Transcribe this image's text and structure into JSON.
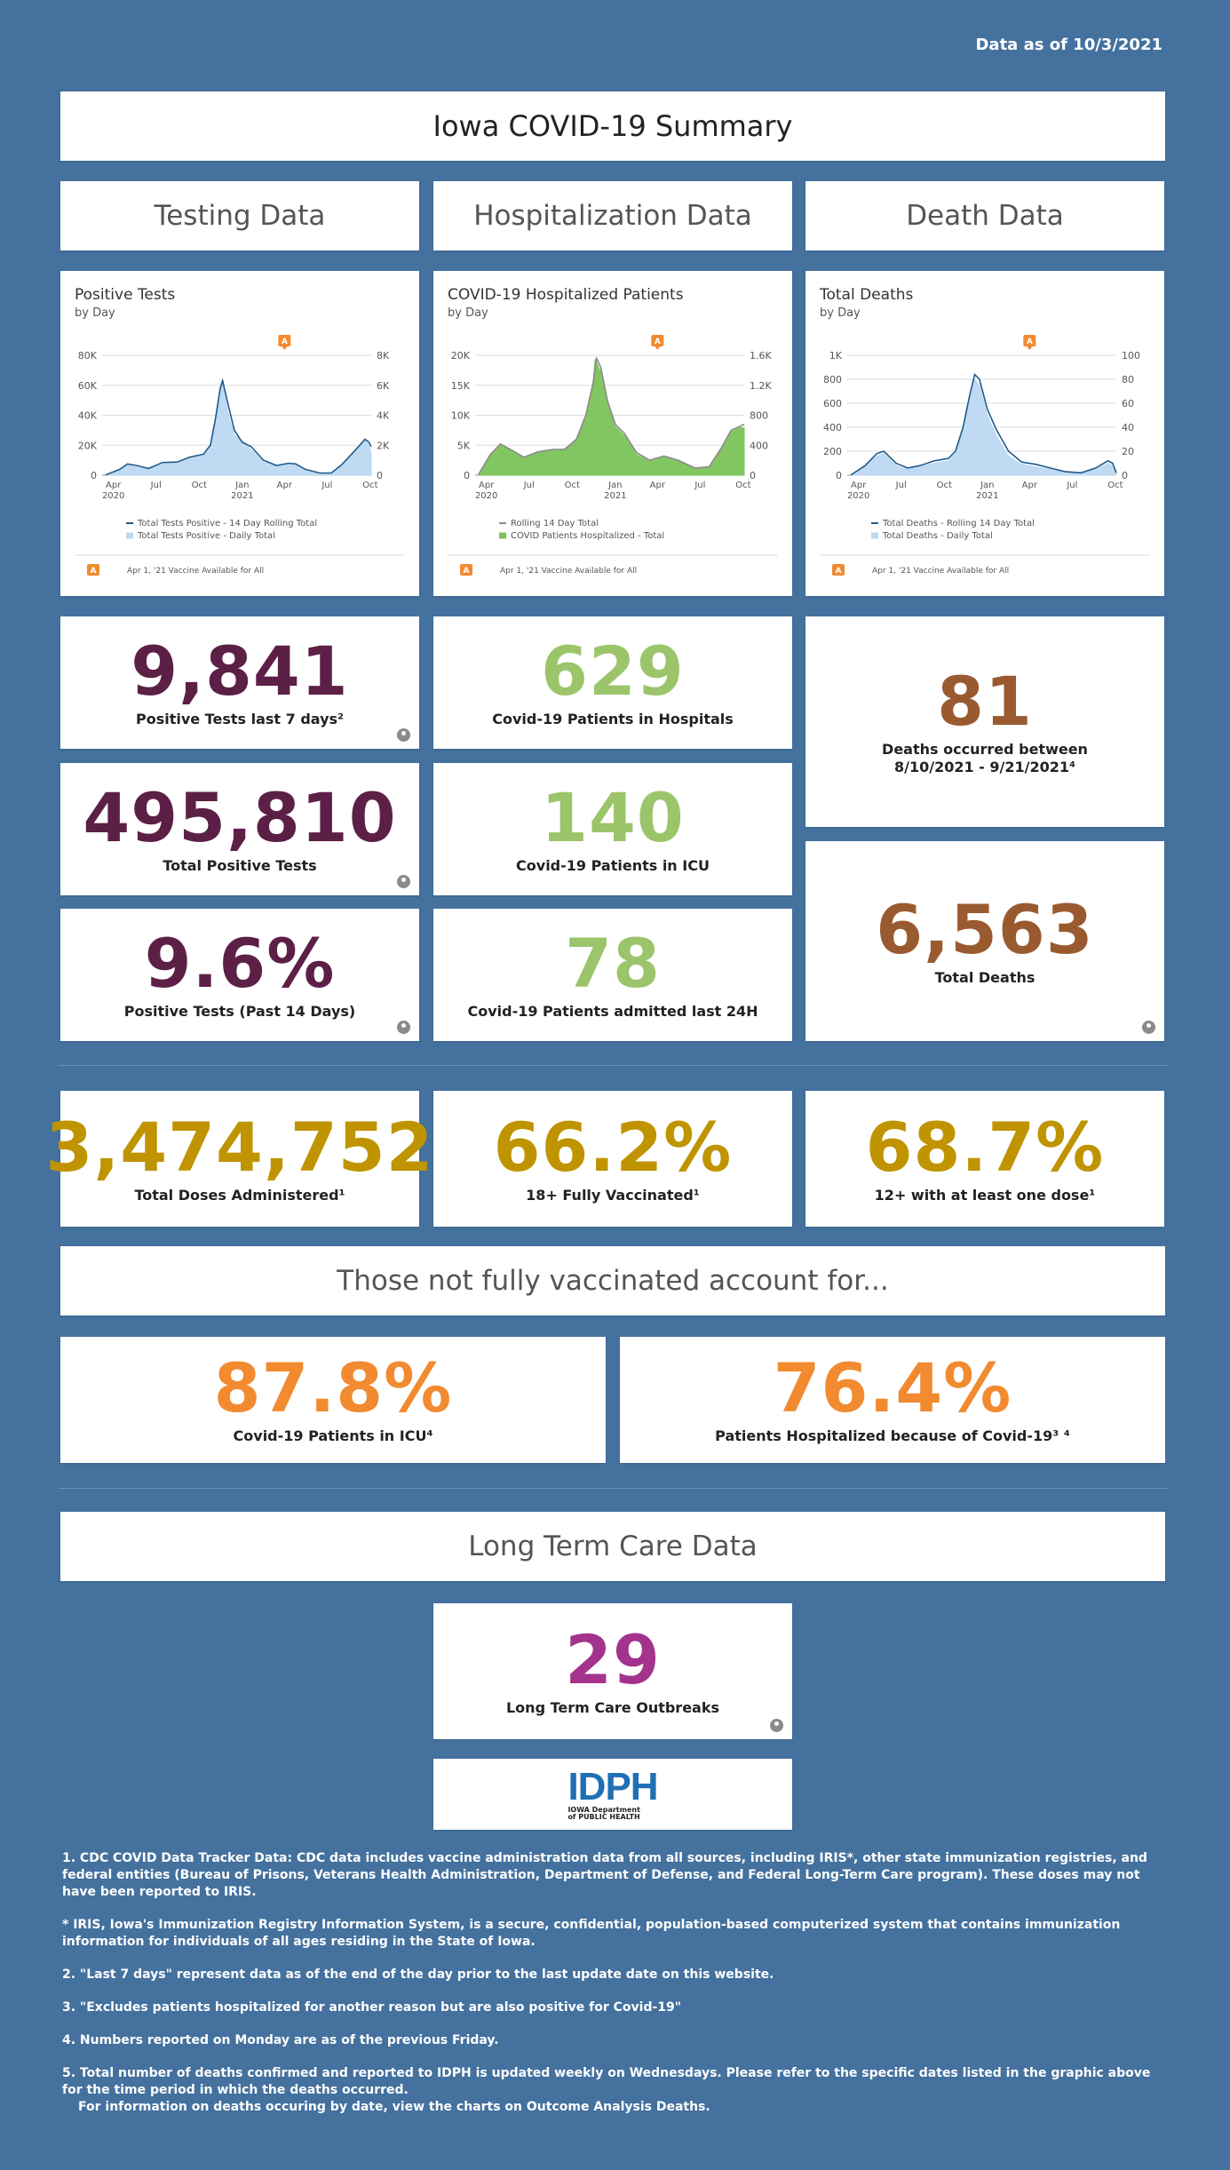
{
  "header": {
    "data_as_of": "Data as of 10/3/2021",
    "title": "Iowa COVID-19 Summary"
  },
  "sections": {
    "testing": "Testing Data",
    "hospitalization": "Hospitalization Data",
    "death": "Death Data"
  },
  "charts_meta": {
    "annotation_marker": "A",
    "annotation_text": "Apr 1, '21 Vaccine Available for All"
  },
  "chart_data": [
    {
      "type": "area",
      "title": "Positive Tests",
      "subtitle": "by Day",
      "x_ticks": [
        "Apr",
        "Jul",
        "Oct",
        "Jan",
        "Apr",
        "Jul",
        "Oct"
      ],
      "x_year_labels": [
        "2020",
        "2021"
      ],
      "y_left_ticks": [
        "0",
        "20K",
        "40K",
        "60K",
        "80K"
      ],
      "y_right_ticks": [
        "0",
        "2K",
        "4K",
        "6K",
        "8K"
      ],
      "ylim_left": [
        0,
        80000
      ],
      "ylim_right": [
        0,
        8000
      ],
      "x_range": [
        "2020-03-08",
        "2021-10-03"
      ],
      "annotation_date": "2021-04-01",
      "series": [
        {
          "name": "Total Tests Positive - 14 Day Rolling Total",
          "axis": "left",
          "color": "#1f5b8c",
          "points": [
            [
              "2020-03-15",
              200
            ],
            [
              "2020-04-15",
              4000
            ],
            [
              "2020-05-01",
              7500
            ],
            [
              "2020-05-20",
              6500
            ],
            [
              "2020-06-15",
              4500
            ],
            [
              "2020-07-15",
              8500
            ],
            [
              "2020-08-15",
              8800
            ],
            [
              "2020-09-10",
              12000
            ],
            [
              "2020-10-10",
              14000
            ],
            [
              "2020-10-25",
              20000
            ],
            [
              "2020-11-05",
              38000
            ],
            [
              "2020-11-15",
              58000
            ],
            [
              "2020-11-20",
              63000
            ],
            [
              "2020-12-01",
              48000
            ],
            [
              "2020-12-15",
              30000
            ],
            [
              "2021-01-01",
              22000
            ],
            [
              "2021-01-20",
              19000
            ],
            [
              "2021-02-15",
              10000
            ],
            [
              "2021-03-15",
              6500
            ],
            [
              "2021-04-10",
              8000
            ],
            [
              "2021-04-25",
              7500
            ],
            [
              "2021-05-15",
              4000
            ],
            [
              "2021-06-15",
              1500
            ],
            [
              "2021-07-10",
              1500
            ],
            [
              "2021-08-01",
              7000
            ],
            [
              "2021-08-25",
              15000
            ],
            [
              "2021-09-20",
              24000
            ],
            [
              "2021-09-28",
              22000
            ],
            [
              "2021-10-03",
              19000
            ]
          ]
        },
        {
          "name": "Total Tests Positive - Daily Total",
          "axis": "right",
          "color": "#bcd9f2",
          "points": [
            [
              "2020-03-15",
              20
            ],
            [
              "2020-04-15",
              350
            ],
            [
              "2020-05-01",
              700
            ],
            [
              "2020-05-20",
              550
            ],
            [
              "2020-06-15",
              400
            ],
            [
              "2020-07-15",
              750
            ],
            [
              "2020-08-15",
              800
            ],
            [
              "2020-09-10",
              1100
            ],
            [
              "2020-10-10",
              1300
            ],
            [
              "2020-10-25",
              2000
            ],
            [
              "2020-11-05",
              3600
            ],
            [
              "2020-11-15",
              5300
            ],
            [
              "2020-11-18",
              6400
            ],
            [
              "2020-11-22",
              5800
            ],
            [
              "2020-12-01",
              4200
            ],
            [
              "2020-12-15",
              2700
            ],
            [
              "2021-01-01",
              2300
            ],
            [
              "2021-01-20",
              1700
            ],
            [
              "2021-02-15",
              900
            ],
            [
              "2021-03-15",
              600
            ],
            [
              "2021-04-10",
              800
            ],
            [
              "2021-04-25",
              650
            ],
            [
              "2021-05-15",
              350
            ],
            [
              "2021-06-15",
              120
            ],
            [
              "2021-07-10",
              150
            ],
            [
              "2021-08-01",
              650
            ],
            [
              "2021-08-25",
              1400
            ],
            [
              "2021-09-20",
              2300
            ],
            [
              "2021-09-28",
              2000
            ],
            [
              "2021-10-03",
              1500
            ]
          ]
        }
      ]
    },
    {
      "type": "area",
      "title": "COVID-19 Hospitalized Patients",
      "subtitle": "by Day",
      "x_ticks": [
        "Apr",
        "Jul",
        "Oct",
        "Jan",
        "Apr",
        "Jul",
        "Oct"
      ],
      "x_year_labels": [
        "2020",
        "2021"
      ],
      "y_left_ticks": [
        "0",
        "5K",
        "10K",
        "15K",
        "20K"
      ],
      "y_right_ticks": [
        "0",
        "400",
        "800",
        "1.2K",
        "1.6K"
      ],
      "ylim_left": [
        0,
        20000
      ],
      "ylim_right": [
        0,
        1600
      ],
      "x_range": [
        "2020-03-08",
        "2021-10-03"
      ],
      "annotation_date": "2021-04-01",
      "series": [
        {
          "name": "Rolling 14 Day Total",
          "axis": "left",
          "color": "#8a8a8a",
          "points": [
            [
              "2020-03-15",
              100
            ],
            [
              "2020-04-10",
              3500
            ],
            [
              "2020-05-01",
              5200
            ],
            [
              "2020-05-25",
              4200
            ],
            [
              "2020-06-20",
              3000
            ],
            [
              "2020-07-20",
              3900
            ],
            [
              "2020-08-20",
              4300
            ],
            [
              "2020-09-15",
              4300
            ],
            [
              "2020-10-10",
              6000
            ],
            [
              "2020-10-30",
              10000
            ],
            [
              "2020-11-15",
              15500
            ],
            [
              "2020-11-22",
              19500
            ],
            [
              "2020-12-01",
              18000
            ],
            [
              "2020-12-15",
              12500
            ],
            [
              "2021-01-01",
              8500
            ],
            [
              "2021-01-20",
              7000
            ],
            [
              "2021-02-15",
              3800
            ],
            [
              "2021-03-15",
              2500
            ],
            [
              "2021-04-15",
              3200
            ],
            [
              "2021-05-15",
              2500
            ],
            [
              "2021-06-20",
              1200
            ],
            [
              "2021-07-20",
              1400
            ],
            [
              "2021-08-15",
              4500
            ],
            [
              "2021-09-05",
              7500
            ],
            [
              "2021-09-25",
              8200
            ],
            [
              "2021-10-03",
              8500
            ]
          ]
        },
        {
          "name": "COVID Patients Hospitalized - Total",
          "axis": "right",
          "color": "#7cc35a",
          "points": [
            [
              "2020-03-15",
              10
            ],
            [
              "2020-04-10",
              280
            ],
            [
              "2020-05-01",
              410
            ],
            [
              "2020-05-25",
              330
            ],
            [
              "2020-06-20",
              230
            ],
            [
              "2020-07-20",
              300
            ],
            [
              "2020-08-20",
              340
            ],
            [
              "2020-09-15",
              350
            ],
            [
              "2020-10-10",
              480
            ],
            [
              "2020-10-30",
              800
            ],
            [
              "2020-11-15",
              1250
            ],
            [
              "2020-11-19",
              1550
            ],
            [
              "2020-12-01",
              1380
            ],
            [
              "2020-12-15",
              950
            ],
            [
              "2021-01-01",
              650
            ],
            [
              "2021-01-20",
              530
            ],
            [
              "2021-02-15",
              280
            ],
            [
              "2021-03-15",
              190
            ],
            [
              "2021-04-15",
              250
            ],
            [
              "2021-05-15",
              190
            ],
            [
              "2021-06-20",
              80
            ],
            [
              "2021-07-20",
              110
            ],
            [
              "2021-08-15",
              360
            ],
            [
              "2021-09-05",
              580
            ],
            [
              "2021-09-25",
              640
            ],
            [
              "2021-10-03",
              629
            ]
          ]
        }
      ]
    },
    {
      "type": "area",
      "title": "Total Deaths",
      "subtitle": "by Day",
      "x_ticks": [
        "Apr",
        "Jul",
        "Oct",
        "Jan",
        "Apr",
        "Jul",
        "Oct"
      ],
      "x_year_labels": [
        "2020",
        "2021"
      ],
      "y_left_ticks": [
        "0",
        "200",
        "400",
        "600",
        "800",
        "1K"
      ],
      "y_right_ticks": [
        "0",
        "20",
        "40",
        "60",
        "80",
        "100"
      ],
      "ylim_left": [
        0,
        1000
      ],
      "ylim_right": [
        0,
        100
      ],
      "x_range": [
        "2020-03-08",
        "2021-10-03"
      ],
      "annotation_date": "2021-04-01",
      "series": [
        {
          "name": "Total Deaths - Rolling 14 Day Total",
          "axis": "left",
          "color": "#1f5b8c",
          "points": [
            [
              "2020-03-15",
              0
            ],
            [
              "2020-04-15",
              80
            ],
            [
              "2020-05-10",
              180
            ],
            [
              "2020-05-25",
              200
            ],
            [
              "2020-06-20",
              100
            ],
            [
              "2020-07-15",
              60
            ],
            [
              "2020-08-10",
              80
            ],
            [
              "2020-09-10",
              120
            ],
            [
              "2020-10-10",
              140
            ],
            [
              "2020-10-25",
              200
            ],
            [
              "2020-11-10",
              400
            ],
            [
              "2020-11-25",
              680
            ],
            [
              "2020-12-05",
              840
            ],
            [
              "2020-12-15",
              800
            ],
            [
              "2021-01-01",
              550
            ],
            [
              "2021-01-20",
              380
            ],
            [
              "2021-02-15",
              200
            ],
            [
              "2021-03-15",
              110
            ],
            [
              "2021-04-15",
              90
            ],
            [
              "2021-05-15",
              60
            ],
            [
              "2021-06-15",
              30
            ],
            [
              "2021-07-20",
              20
            ],
            [
              "2021-08-20",
              60
            ],
            [
              "2021-09-15",
              120
            ],
            [
              "2021-09-25",
              100
            ],
            [
              "2021-10-03",
              20
            ]
          ]
        },
        {
          "name": "Total Deaths - Daily Total",
          "axis": "right",
          "color": "#bcd9f2",
          "points": [
            [
              "2020-03-15",
              0
            ],
            [
              "2020-04-15",
              8
            ],
            [
              "2020-05-10",
              16
            ],
            [
              "2020-05-25",
              18
            ],
            [
              "2020-06-20",
              8
            ],
            [
              "2020-07-15",
              5
            ],
            [
              "2020-08-10",
              7
            ],
            [
              "2020-09-10",
              10
            ],
            [
              "2020-10-10",
              12
            ],
            [
              "2020-10-25",
              18
            ],
            [
              "2020-11-10",
              38
            ],
            [
              "2020-11-25",
              65
            ],
            [
              "2020-12-05",
              80
            ],
            [
              "2020-12-15",
              75
            ],
            [
              "2021-01-01",
              50
            ],
            [
              "2021-01-20",
              33
            ],
            [
              "2021-02-15",
              16
            ],
            [
              "2021-03-15",
              9
            ],
            [
              "2021-04-15",
              7
            ],
            [
              "2021-05-15",
              5
            ],
            [
              "2021-06-15",
              2
            ],
            [
              "2021-07-20",
              2
            ],
            [
              "2021-08-20",
              5
            ],
            [
              "2021-09-15",
              10
            ],
            [
              "2021-09-25",
              8
            ],
            [
              "2021-10-03",
              1
            ]
          ]
        }
      ]
    }
  ],
  "kpis": {
    "pos7": {
      "value": "9,841",
      "label": "Positive Tests last 7 days²"
    },
    "total_pos": {
      "value": "495,810",
      "label": "Total Positive Tests"
    },
    "pos_rate": {
      "value": "9.6%",
      "label": "Positive Tests (Past 14 Days)"
    },
    "hosp": {
      "value": "629",
      "label": "Covid-19 Patients in Hospitals"
    },
    "icu": {
      "value": "140",
      "label": "Covid-19 Patients in ICU"
    },
    "admit24": {
      "value": "78",
      "label": "Covid-19 Patients admitted last 24H"
    },
    "deaths_period": {
      "value": "81",
      "label_line1": "Deaths occurred between",
      "label_line2": "8/10/2021 - 9/21/2021⁴"
    },
    "total_deaths": {
      "value": "6,563",
      "label": "Total Deaths"
    },
    "doses": {
      "value": "3,474,752",
      "label": "Total Doses Administered¹"
    },
    "adult_full": {
      "value": "66.2%",
      "label": "18+ Fully Vaccinated¹"
    },
    "twelve_one": {
      "value": "68.7%",
      "label": "12+ with at least one dose¹"
    },
    "unvax_icu": {
      "value": "87.8%",
      "label": "Covid-19 Patients in ICU⁴"
    },
    "unvax_hosp": {
      "value": "76.4%",
      "label": "Patients Hospitalized because of Covid-19³ ⁴"
    },
    "ltc": {
      "value": "29",
      "label": "Long Term Care Outbreaks"
    }
  },
  "unvax_header": "Those not fully vaccinated account for...",
  "ltc_header": "Long Term Care Data",
  "logo": {
    "letters": "IDPH",
    "line1": "IOWA Department",
    "line2": "of PUBLIC HEALTH"
  },
  "colors": {
    "testing": "#5c2046",
    "hosp": "#9cc46a",
    "death": "#9a5a30",
    "vax": "#bf9400",
    "unvax": "#f28a30",
    "ltc": "#a3338c"
  },
  "footnotes": [
    "1. CDC COVID Data Tracker Data: CDC data includes vaccine administration data from all sources, including IRIS*, other state immunization registries, and federal entities (Bureau of Prisons, Veterans Health Administration, Department of Defense, and Federal Long-Term Care program). These doses may not have been reported to IRIS.",
    "* IRIS, Iowa's Immunization Registry Information System, is a secure, confidential, population-based computerized system that contains immunization information for individuals of all ages residing in the State of Iowa.",
    "2.  \"Last 7 days\" represent data as of the end of the day prior to the last update date on this website.",
    "3. \"Excludes patients hospitalized for another reason but are also positive for Covid-19\"",
    "4. Numbers reported on Monday are as of the previous Friday.",
    "5. Total number of deaths confirmed and reported to IDPH is updated weekly on Wednesdays.  Please refer to the specific dates listed in the graphic above for the time period in which the deaths occurred."
  ],
  "footnote_extra": "For information on deaths occuring by date, view the charts on Outcome Analysis Deaths."
}
